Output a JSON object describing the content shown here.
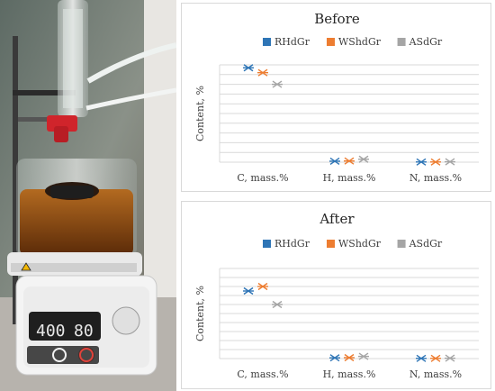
{
  "photo": {
    "description_icon": "lab-reactor-photo",
    "device_display": {
      "temperature": "400",
      "speed": "80"
    }
  },
  "colors": {
    "RHdGr": "#2e75b6",
    "WShdGr": "#ed7d31",
    "ASdGr": "#a5a5a5",
    "grid": "#d9d9d9",
    "text": "#404040"
  },
  "chart_data": [
    {
      "type": "scatter",
      "title": "Before",
      "ylabel": "Content, %",
      "xlabel": "",
      "categories": [
        "C, mass.%",
        "H, mass.%",
        "N, mass.%"
      ],
      "legend": "top",
      "grid": true,
      "ylim": [
        0,
        50
      ],
      "series": [
        {
          "name": "RHdGr",
          "values": [
            48.5,
            0.5,
            0.1
          ]
        },
        {
          "name": "WShdGr",
          "values": [
            46.0,
            0.6,
            0.1
          ]
        },
        {
          "name": "ASdGr",
          "values": [
            40.0,
            1.5,
            0.2
          ]
        }
      ]
    },
    {
      "type": "scatter",
      "title": "After",
      "ylabel": "Content, %",
      "xlabel": "",
      "categories": [
        "C, mass.%",
        "H, mass.%",
        "N, mass.%"
      ],
      "legend": "top",
      "grid": true,
      "ylim": [
        0,
        50
      ],
      "series": [
        {
          "name": "RHdGr",
          "values": [
            37.5,
            0.4,
            0.1
          ]
        },
        {
          "name": "WShdGr",
          "values": [
            40.0,
            0.5,
            0.1
          ]
        },
        {
          "name": "ASdGr",
          "values": [
            30.0,
            1.2,
            0.2
          ]
        }
      ]
    }
  ]
}
